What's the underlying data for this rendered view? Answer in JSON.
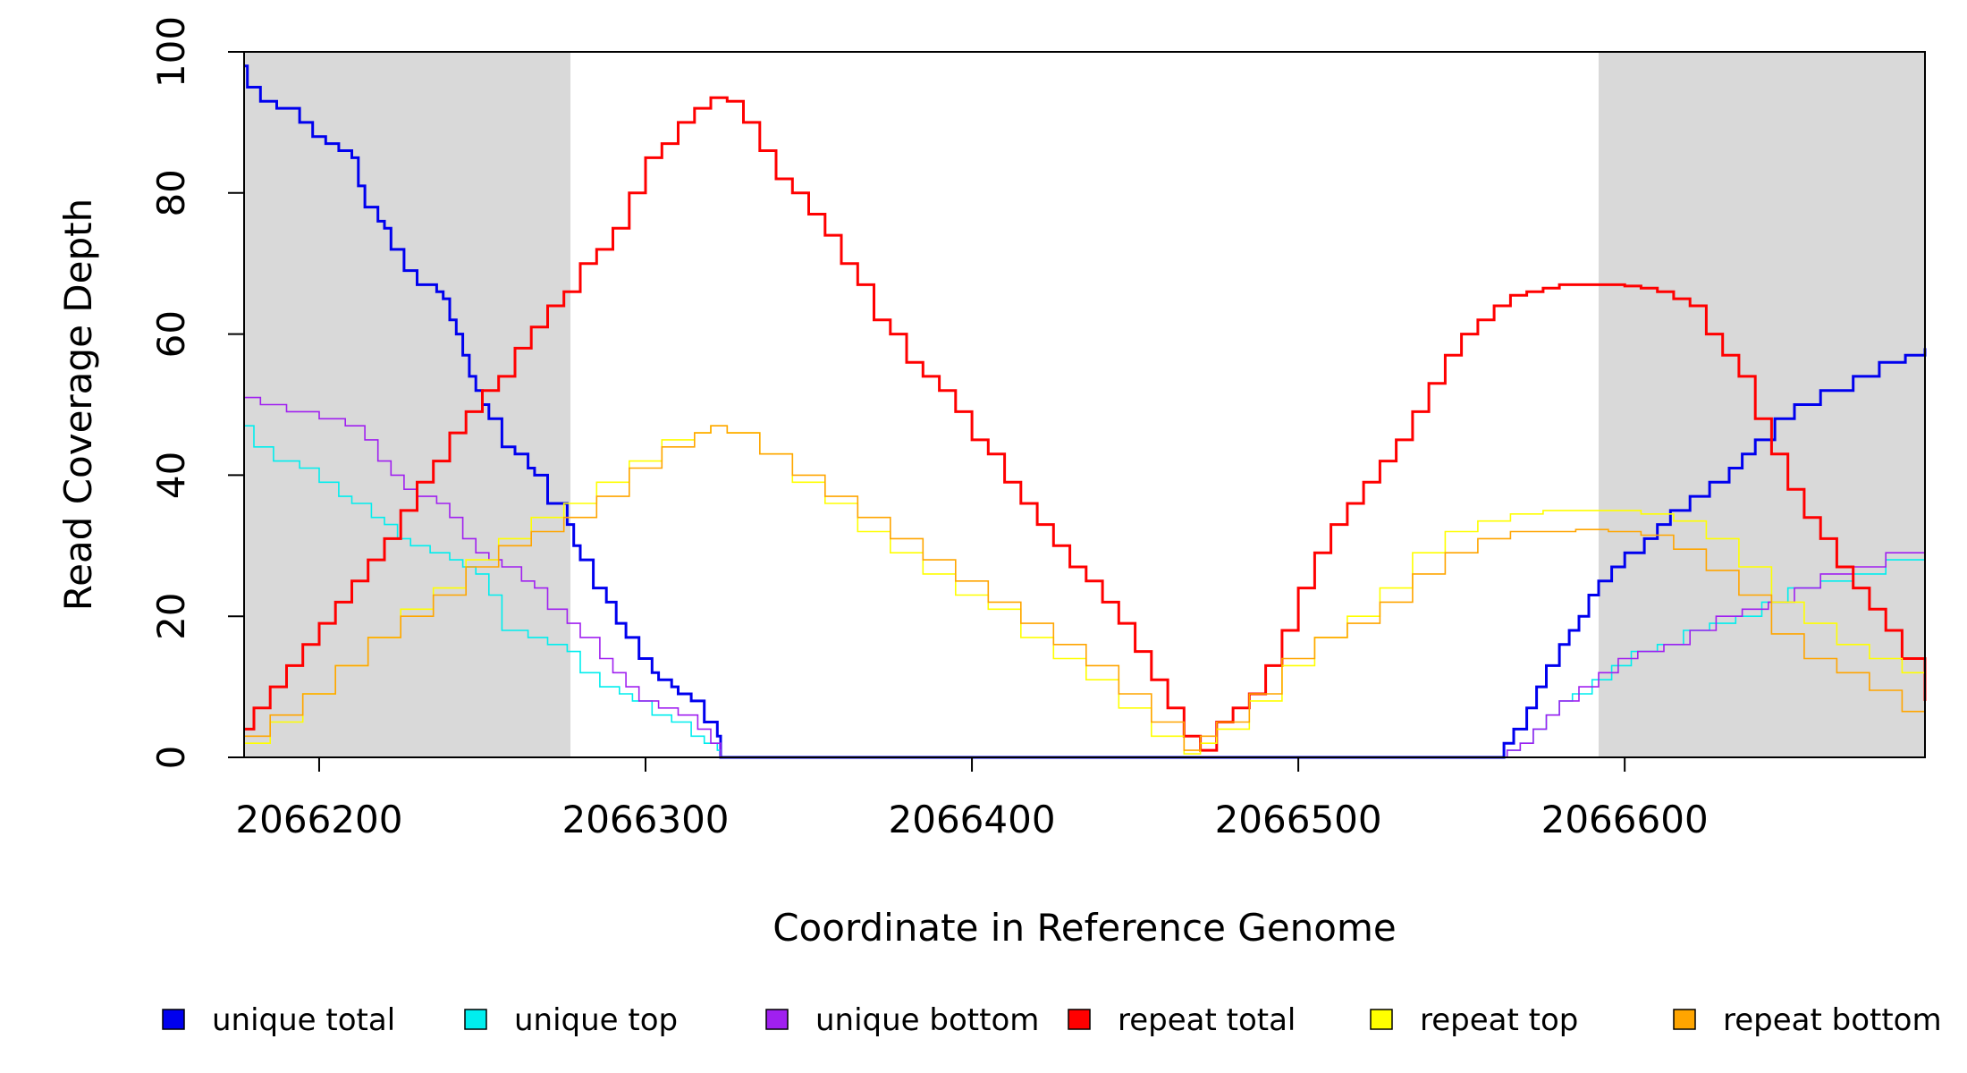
{
  "chart_data": {
    "type": "line",
    "title": "",
    "xlabel": "Coordinate in Reference Genome",
    "ylabel": "Read Coverage Depth",
    "xlim": [
      2066177,
      2066692
    ],
    "ylim": [
      0,
      100
    ],
    "x_ticks": [
      2066200,
      2066300,
      2066400,
      2066500,
      2066600
    ],
    "x_tick_labels": [
      "2066200",
      "2066300",
      "2066400",
      "2066500",
      "2066600"
    ],
    "y_ticks": [
      0,
      20,
      40,
      60,
      80,
      100
    ],
    "y_tick_labels": [
      "0",
      "20",
      "40",
      "60",
      "80",
      "100"
    ],
    "grid": false,
    "legend_position": "bottom",
    "shaded_regions": [
      {
        "x_start": 2066177,
        "x_end": 2066277,
        "color": "#d9d9d9"
      },
      {
        "x_start": 2066592,
        "x_end": 2066692,
        "color": "#d9d9d9"
      }
    ],
    "series": [
      {
        "name": "unique total",
        "color": "#0000ee",
        "width": 3,
        "x": [
          2066177,
          2066178,
          2066182,
          2066187,
          2066194,
          2066198,
          2066202,
          2066206,
          2066210,
          2066212,
          2066214,
          2066218,
          2066220,
          2066222,
          2066226,
          2066230,
          2066236,
          2066238,
          2066240,
          2066242,
          2066244,
          2066246,
          2066248,
          2066250,
          2066252,
          2066256,
          2066260,
          2066264,
          2066266,
          2066270,
          2066276,
          2066278,
          2066280,
          2066284,
          2066288,
          2066291,
          2066294,
          2066298,
          2066302,
          2066304,
          2066308,
          2066310,
          2066314,
          2066318,
          2066322,
          2066323,
          2066560,
          2066563,
          2066566,
          2066570,
          2066573,
          2066576,
          2066580,
          2066583,
          2066586,
          2066589,
          2066592,
          2066596,
          2066600,
          2066606,
          2066610,
          2066614,
          2066620,
          2066626,
          2066632,
          2066636,
          2066640,
          2066646,
          2066652,
          2066660,
          2066670,
          2066678,
          2066686,
          2066692
        ],
        "y": [
          98,
          95,
          93,
          92,
          90,
          88,
          87,
          86,
          85,
          81,
          78,
          76,
          75,
          72,
          69,
          67,
          66,
          65,
          62,
          60,
          57,
          54,
          52,
          50,
          48,
          44,
          43,
          41,
          40,
          36,
          33,
          30,
          28,
          24,
          22,
          19,
          17,
          14,
          12,
          11,
          10,
          9,
          8,
          5,
          3,
          0,
          0,
          2,
          4,
          7,
          10,
          13,
          16,
          18,
          20,
          23,
          25,
          27,
          29,
          31,
          33,
          35,
          37,
          39,
          41,
          43,
          45,
          48,
          50,
          52,
          54,
          56,
          57,
          58
        ]
      },
      {
        "name": "unique top",
        "color": "#00eeee",
        "width": 1.6,
        "x": [
          2066177,
          2066180,
          2066186,
          2066194,
          2066200,
          2066206,
          2066210,
          2066216,
          2066220,
          2066224,
          2066228,
          2066234,
          2066240,
          2066244,
          2066248,
          2066252,
          2066256,
          2066264,
          2066270,
          2066276,
          2066280,
          2066286,
          2066292,
          2066296,
          2066302,
          2066308,
          2066314,
          2066318,
          2066322,
          2066323,
          2066560,
          2066564,
          2066568,
          2066572,
          2066576,
          2066580,
          2066584,
          2066590,
          2066596,
          2066602,
          2066610,
          2066618,
          2066626,
          2066634,
          2066642,
          2066650,
          2066660,
          2066670,
          2066680,
          2066692
        ],
        "y": [
          47,
          44,
          42,
          41,
          39,
          37,
          36,
          34,
          33,
          31,
          30,
          29,
          28,
          27,
          26,
          23,
          18,
          17,
          16,
          15,
          12,
          10,
          9,
          8,
          6,
          5,
          3,
          2,
          1,
          0,
          0,
          1,
          2,
          4,
          6,
          8,
          9,
          11,
          13,
          15,
          16,
          18,
          19,
          20,
          22,
          24,
          25,
          26,
          28,
          28
        ]
      },
      {
        "name": "unique bottom",
        "color": "#a020f0",
        "width": 1.6,
        "x": [
          2066177,
          2066182,
          2066190,
          2066200,
          2066208,
          2066214,
          2066218,
          2066222,
          2066226,
          2066230,
          2066236,
          2066240,
          2066244,
          2066248,
          2066252,
          2066256,
          2066262,
          2066266,
          2066270,
          2066276,
          2066280,
          2066286,
          2066290,
          2066294,
          2066298,
          2066304,
          2066310,
          2066316,
          2066320,
          2066323,
          2066560,
          2066564,
          2066568,
          2066572,
          2066576,
          2066580,
          2066586,
          2066592,
          2066598,
          2066604,
          2066612,
          2066620,
          2066628,
          2066636,
          2066644,
          2066652,
          2066660,
          2066670,
          2066680,
          2066692
        ],
        "y": [
          51,
          50,
          49,
          48,
          47,
          45,
          42,
          40,
          38,
          37,
          36,
          34,
          31,
          29,
          28,
          27,
          25,
          24,
          21,
          19,
          17,
          14,
          12,
          10,
          8,
          7,
          6,
          4,
          2,
          0,
          0,
          1,
          2,
          4,
          6,
          8,
          10,
          12,
          14,
          15,
          16,
          18,
          20,
          21,
          22,
          24,
          26,
          27,
          29,
          30
        ]
      },
      {
        "name": "repeat total",
        "color": "#ff0000",
        "width": 3,
        "x": [
          2066177,
          2066180,
          2066185,
          2066190,
          2066195,
          2066200,
          2066205,
          2066210,
          2066215,
          2066220,
          2066225,
          2066230,
          2066235,
          2066240,
          2066245,
          2066250,
          2066255,
          2066260,
          2066265,
          2066270,
          2066275,
          2066280,
          2066285,
          2066290,
          2066295,
          2066300,
          2066305,
          2066310,
          2066315,
          2066320,
          2066325,
          2066330,
          2066335,
          2066340,
          2066345,
          2066350,
          2066355,
          2066360,
          2066365,
          2066370,
          2066375,
          2066380,
          2066385,
          2066390,
          2066395,
          2066400,
          2066405,
          2066410,
          2066415,
          2066420,
          2066425,
          2066430,
          2066435,
          2066440,
          2066445,
          2066450,
          2066455,
          2066460,
          2066465,
          2066470,
          2066475,
          2066480,
          2066485,
          2066490,
          2066495,
          2066500,
          2066505,
          2066510,
          2066515,
          2066520,
          2066525,
          2066530,
          2066535,
          2066540,
          2066545,
          2066550,
          2066555,
          2066560,
          2066565,
          2066570,
          2066575,
          2066580,
          2066585,
          2066590,
          2066595,
          2066600,
          2066605,
          2066610,
          2066615,
          2066620,
          2066625,
          2066630,
          2066635,
          2066640,
          2066645,
          2066650,
          2066655,
          2066660,
          2066665,
          2066670,
          2066675,
          2066680,
          2066685,
          2066692
        ],
        "y": [
          4,
          7,
          10,
          13,
          16,
          19,
          22,
          25,
          28,
          31,
          35,
          39,
          42,
          46,
          49,
          52,
          54,
          58,
          61,
          64,
          66,
          70,
          72,
          75,
          80,
          85,
          87,
          90,
          92,
          93.5,
          93,
          90,
          86,
          82,
          80,
          77,
          74,
          70,
          67,
          62,
          60,
          56,
          54,
          52,
          49,
          45,
          43,
          39,
          36,
          33,
          30,
          27,
          25,
          22,
          19,
          15,
          11,
          7,
          3,
          1,
          5,
          7,
          9,
          13,
          18,
          24,
          29,
          33,
          36,
          39,
          42,
          45,
          49,
          53,
          57,
          60,
          62,
          64,
          65.5,
          66,
          66.5,
          67,
          67,
          67,
          67,
          66.8,
          66.5,
          66,
          65,
          64,
          60,
          57,
          54,
          48,
          43,
          38,
          34,
          31,
          27,
          24,
          21,
          18,
          14,
          8
        ]
      },
      {
        "name": "repeat top",
        "color": "#ffff00",
        "width": 1.6,
        "x": [
          2066177,
          2066185,
          2066195,
          2066205,
          2066215,
          2066225,
          2066235,
          2066245,
          2066255,
          2066265,
          2066275,
          2066285,
          2066295,
          2066305,
          2066315,
          2066320,
          2066325,
          2066335,
          2066345,
          2066355,
          2066365,
          2066375,
          2066385,
          2066395,
          2066405,
          2066415,
          2066425,
          2066435,
          2066445,
          2066455,
          2066465,
          2066470,
          2066475,
          2066485,
          2066495,
          2066505,
          2066515,
          2066525,
          2066535,
          2066545,
          2066555,
          2066565,
          2066575,
          2066585,
          2066595,
          2066605,
          2066615,
          2066625,
          2066635,
          2066645,
          2066655,
          2066665,
          2066675,
          2066685,
          2066692
        ],
        "y": [
          2,
          5,
          9,
          13,
          17,
          21,
          24,
          28,
          31,
          34,
          36,
          39,
          42,
          45,
          46,
          47,
          46,
          43,
          39,
          36,
          32,
          29,
          26,
          23,
          21,
          17,
          14,
          11,
          7,
          3,
          0.5,
          2,
          4,
          8,
          13,
          17,
          20,
          24,
          29,
          32,
          33.5,
          34.5,
          35,
          35,
          35,
          34.5,
          33.5,
          31,
          27,
          22,
          19,
          16,
          14,
          12,
          4
        ]
      },
      {
        "name": "repeat bottom",
        "color": "#ffa500",
        "width": 1.6,
        "x": [
          2066177,
          2066185,
          2066195,
          2066205,
          2066215,
          2066225,
          2066235,
          2066245,
          2066255,
          2066265,
          2066275,
          2066285,
          2066295,
          2066305,
          2066315,
          2066320,
          2066325,
          2066335,
          2066345,
          2066355,
          2066365,
          2066375,
          2066385,
          2066395,
          2066405,
          2066415,
          2066425,
          2066435,
          2066445,
          2066455,
          2066465,
          2066470,
          2066475,
          2066485,
          2066495,
          2066505,
          2066515,
          2066525,
          2066535,
          2066545,
          2066555,
          2066565,
          2066575,
          2066585,
          2066595,
          2066605,
          2066615,
          2066625,
          2066635,
          2066645,
          2066655,
          2066665,
          2066675,
          2066685,
          2066692
        ],
        "y": [
          3,
          6,
          9,
          13,
          17,
          20,
          23,
          27,
          30,
          32,
          34,
          37,
          41,
          44,
          46,
          47,
          46,
          43,
          40,
          37,
          34,
          31,
          28,
          25,
          22,
          19,
          16,
          13,
          9,
          5,
          1,
          3,
          5,
          9,
          14,
          17,
          19,
          22,
          26,
          29,
          31,
          32,
          32,
          32.3,
          32,
          31.5,
          29.5,
          26.5,
          23,
          17.5,
          14,
          12,
          9.5,
          6.5,
          4.5
        ]
      }
    ]
  }
}
